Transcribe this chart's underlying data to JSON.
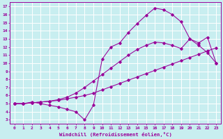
{
  "xlabel": "Windchill (Refroidissement éolien,°C)",
  "bg_color": "#c8eef0",
  "line_color": "#990099",
  "grid_color": "#ffffff",
  "xlim": [
    -0.5,
    23.5
  ],
  "ylim": [
    2.5,
    17.5
  ],
  "xticks": [
    0,
    1,
    2,
    3,
    4,
    5,
    6,
    7,
    8,
    9,
    10,
    11,
    12,
    13,
    14,
    15,
    16,
    17,
    18,
    19,
    20,
    21,
    22,
    23
  ],
  "yticks": [
    3,
    4,
    5,
    6,
    7,
    8,
    9,
    10,
    11,
    12,
    13,
    14,
    15,
    16,
    17
  ],
  "line1_x": [
    0,
    1,
    2,
    3,
    4,
    5,
    6,
    7,
    8,
    9,
    10,
    11,
    12,
    13,
    14,
    15,
    16,
    17,
    18,
    19,
    20,
    21,
    22,
    23
  ],
  "line1_y": [
    5.0,
    5.0,
    5.1,
    5.2,
    5.3,
    5.4,
    5.6,
    5.8,
    6.0,
    6.3,
    6.7,
    7.1,
    7.5,
    7.9,
    8.3,
    8.7,
    9.1,
    9.5,
    9.9,
    10.3,
    10.7,
    11.1,
    11.5,
    11.9
  ],
  "line2_x": [
    0,
    1,
    2,
    3,
    4,
    5,
    6,
    7,
    8,
    9,
    10,
    11,
    12,
    13,
    14,
    15,
    16,
    17,
    18,
    19,
    20,
    21,
    22,
    23
  ],
  "line2_y": [
    5.0,
    5.0,
    5.1,
    5.2,
    5.3,
    5.5,
    5.8,
    6.3,
    7.0,
    7.8,
    8.6,
    9.4,
    10.2,
    11.0,
    11.7,
    12.2,
    12.6,
    12.5,
    12.2,
    11.8,
    13.0,
    12.5,
    13.2,
    10.0
  ],
  "line3_x": [
    0,
    1,
    2,
    3,
    4,
    5,
    6,
    7,
    8,
    9,
    10,
    11,
    12,
    13,
    14,
    15,
    16,
    17,
    18,
    19,
    20,
    21,
    22,
    23
  ],
  "line3_y": [
    5.0,
    5.0,
    5.2,
    5.0,
    4.8,
    4.6,
    4.3,
    4.0,
    3.0,
    4.8,
    10.5,
    12.0,
    12.5,
    13.8,
    14.9,
    15.9,
    16.8,
    16.6,
    16.0,
    15.1,
    13.0,
    12.2,
    11.3,
    10.0
  ]
}
